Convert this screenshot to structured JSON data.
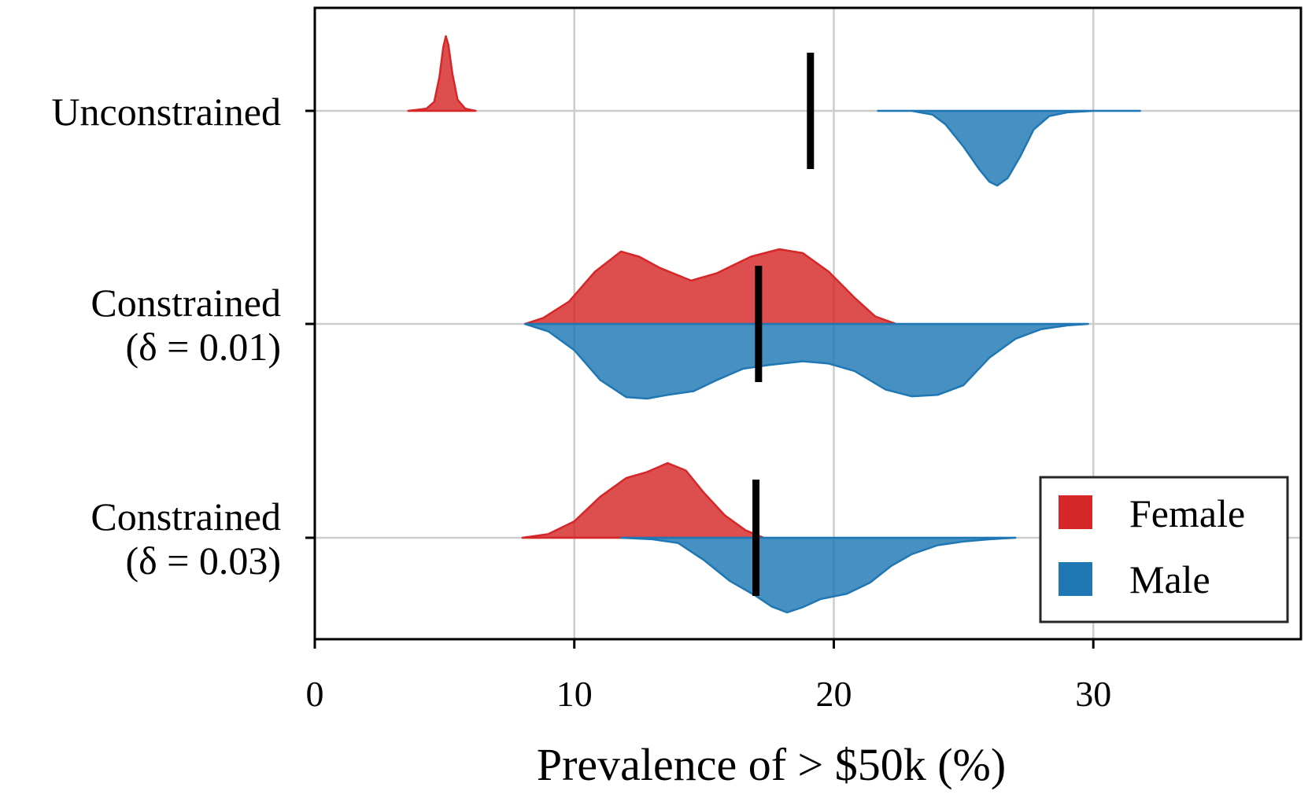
{
  "chart_data": {
    "type": "violin",
    "xlabel": "Prevalence of > $50k (%)",
    "xlim": [
      0,
      38
    ],
    "xticks": [
      0,
      10,
      20,
      30
    ],
    "grid": true,
    "legend": {
      "placement": "bottom-right",
      "entries": [
        {
          "name": "Female",
          "color": "#d62728"
        },
        {
          "name": "Male",
          "color": "#1f77b4"
        }
      ]
    },
    "colors": {
      "female": "#d62728",
      "male": "#1f77b4",
      "marker": "#000000"
    },
    "categories": [
      {
        "label_lines": [
          "Unconstrained"
        ],
        "mean_marker": 19.1,
        "female": [
          [
            3.6,
            0.0
          ],
          [
            4.3,
            0.03
          ],
          [
            4.6,
            0.12
          ],
          [
            4.8,
            0.45
          ],
          [
            4.95,
            0.85
          ],
          [
            5.05,
            1.0
          ],
          [
            5.15,
            0.88
          ],
          [
            5.3,
            0.5
          ],
          [
            5.5,
            0.15
          ],
          [
            5.8,
            0.03
          ],
          [
            6.2,
            0.0
          ]
        ],
        "male": [
          [
            21.7,
            0.0
          ],
          [
            23.0,
            0.0
          ],
          [
            23.8,
            0.05
          ],
          [
            24.3,
            0.18
          ],
          [
            25.0,
            0.48
          ],
          [
            25.6,
            0.78
          ],
          [
            26.0,
            0.95
          ],
          [
            26.3,
            1.0
          ],
          [
            26.7,
            0.9
          ],
          [
            27.2,
            0.6
          ],
          [
            27.7,
            0.25
          ],
          [
            28.3,
            0.07
          ],
          [
            29.0,
            0.02
          ],
          [
            30.0,
            0.0
          ],
          [
            31.8,
            0.0
          ]
        ]
      },
      {
        "label_lines": [
          "Constrained",
          "(δ = 0.01)"
        ],
        "mean_marker": 17.1,
        "female": [
          [
            8.1,
            0.0
          ],
          [
            8.8,
            0.08
          ],
          [
            9.8,
            0.3
          ],
          [
            10.8,
            0.7
          ],
          [
            11.8,
            0.97
          ],
          [
            12.5,
            0.9
          ],
          [
            13.3,
            0.75
          ],
          [
            14.5,
            0.58
          ],
          [
            15.5,
            0.68
          ],
          [
            16.8,
            0.9
          ],
          [
            17.9,
            1.0
          ],
          [
            18.8,
            0.95
          ],
          [
            19.8,
            0.7
          ],
          [
            20.8,
            0.35
          ],
          [
            21.6,
            0.1
          ],
          [
            22.4,
            0.0
          ]
        ],
        "male": [
          [
            8.1,
            0.0
          ],
          [
            9.0,
            0.1
          ],
          [
            10.0,
            0.35
          ],
          [
            11.0,
            0.75
          ],
          [
            12.0,
            0.98
          ],
          [
            12.8,
            1.0
          ],
          [
            13.6,
            0.95
          ],
          [
            14.6,
            0.9
          ],
          [
            15.5,
            0.75
          ],
          [
            16.5,
            0.6
          ],
          [
            17.5,
            0.55
          ],
          [
            18.8,
            0.5
          ],
          [
            19.8,
            0.53
          ],
          [
            20.8,
            0.63
          ],
          [
            22.0,
            0.88
          ],
          [
            23.0,
            0.97
          ],
          [
            24.0,
            0.95
          ],
          [
            25.0,
            0.82
          ],
          [
            26.0,
            0.45
          ],
          [
            27.0,
            0.2
          ],
          [
            28.0,
            0.07
          ],
          [
            29.0,
            0.02
          ],
          [
            29.8,
            0.0
          ]
        ]
      },
      {
        "label_lines": [
          "Constrained",
          "(δ = 0.03)"
        ],
        "mean_marker": 17.0,
        "female": [
          [
            8.0,
            0.0
          ],
          [
            9.0,
            0.05
          ],
          [
            10.0,
            0.22
          ],
          [
            11.0,
            0.55
          ],
          [
            12.0,
            0.8
          ],
          [
            12.8,
            0.88
          ],
          [
            13.6,
            1.0
          ],
          [
            14.3,
            0.9
          ],
          [
            15.0,
            0.6
          ],
          [
            15.8,
            0.3
          ],
          [
            16.6,
            0.1
          ],
          [
            17.3,
            0.0
          ]
        ],
        "male": [
          [
            11.8,
            0.0
          ],
          [
            13.0,
            0.02
          ],
          [
            14.0,
            0.07
          ],
          [
            15.0,
            0.3
          ],
          [
            16.0,
            0.58
          ],
          [
            17.0,
            0.78
          ],
          [
            17.6,
            0.92
          ],
          [
            18.2,
            1.0
          ],
          [
            18.8,
            0.93
          ],
          [
            19.5,
            0.82
          ],
          [
            20.5,
            0.75
          ],
          [
            21.4,
            0.6
          ],
          [
            22.2,
            0.38
          ],
          [
            23.0,
            0.22
          ],
          [
            24.0,
            0.1
          ],
          [
            25.0,
            0.05
          ],
          [
            26.0,
            0.02
          ],
          [
            27.0,
            0.0
          ]
        ]
      }
    ]
  }
}
